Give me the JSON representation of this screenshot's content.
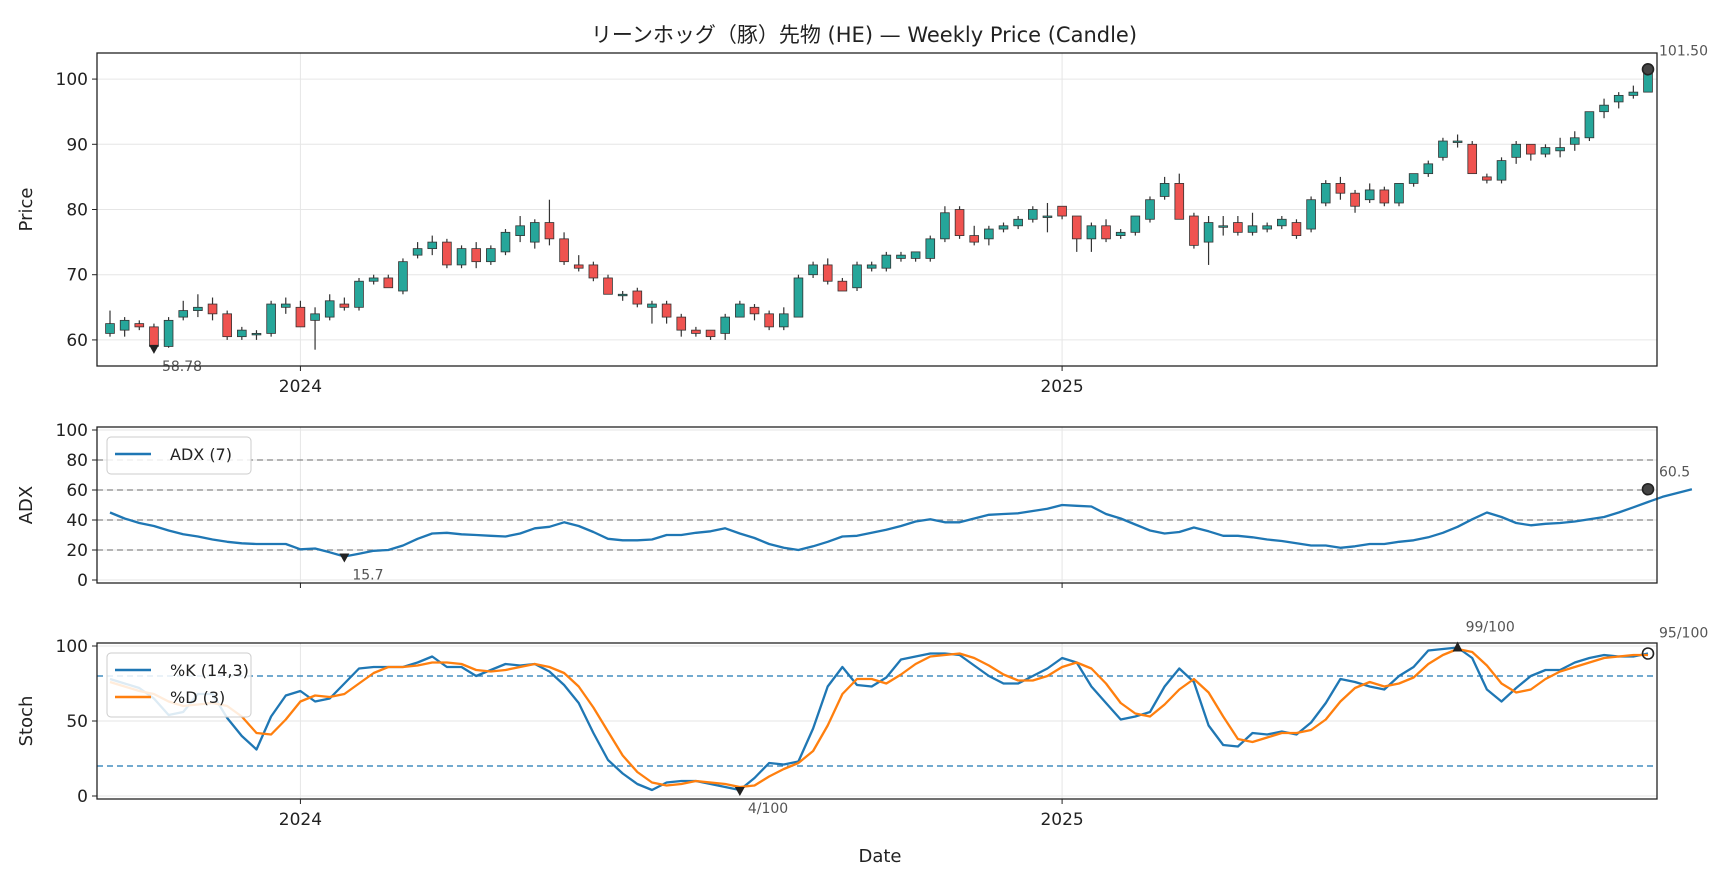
{
  "title": "リーンホッグ（豚）先物 (HE) — Weekly Price (Candle)",
  "colors": {
    "up": "#26a69a",
    "down": "#ef5350",
    "adx": "#1f77b4",
    "k": "#1f77b4",
    "d": "#ff7f0e",
    "stoch_ref": "#1f77b4",
    "adx_ref": "#888888"
  },
  "xaxis": {
    "label": "Date",
    "ticks": [
      {
        "label": "2024",
        "week": 13
      },
      {
        "label": "2025",
        "week": 65
      }
    ]
  },
  "chart_data": [
    {
      "type": "candlestick",
      "panel": "price",
      "ylabel": "Price",
      "ylim": [
        56,
        104
      ],
      "yticks": [
        60,
        70,
        80,
        90,
        100
      ],
      "grid": true,
      "ohlc": [
        [
          61,
          64.5,
          60.5,
          62.5
        ],
        [
          61.5,
          63.5,
          60.5,
          63
        ],
        [
          62.5,
          63,
          61.5,
          62
        ],
        [
          62,
          62.5,
          58.78,
          59
        ],
        [
          59,
          63.5,
          58.8,
          63
        ],
        [
          63.5,
          66,
          63,
          64.5
        ],
        [
          64.5,
          67,
          63.5,
          65
        ],
        [
          65.5,
          66.5,
          63,
          64
        ],
        [
          64,
          64.5,
          60,
          60.5
        ],
        [
          60.5,
          62,
          60,
          61.5
        ],
        [
          61,
          61.5,
          60,
          61
        ],
        [
          61,
          66,
          60.5,
          65.5
        ],
        [
          65,
          66.5,
          64,
          65.5
        ],
        [
          65,
          66,
          62,
          62
        ],
        [
          63,
          65,
          58.5,
          64
        ],
        [
          63.5,
          67,
          63,
          66
        ],
        [
          65.5,
          66.5,
          64.5,
          65
        ],
        [
          65,
          69.5,
          64.5,
          69
        ],
        [
          69,
          70,
          68.5,
          69.5
        ],
        [
          69.5,
          70,
          68,
          68
        ],
        [
          67.5,
          72.5,
          67,
          72
        ],
        [
          73,
          75,
          72.5,
          74
        ],
        [
          74,
          76,
          73,
          75
        ],
        [
          75,
          75.5,
          71,
          71.5
        ],
        [
          71.5,
          74.5,
          71,
          74
        ],
        [
          74,
          75,
          71,
          72
        ],
        [
          72,
          74.5,
          71.5,
          74
        ],
        [
          73.5,
          77,
          73,
          76.5
        ],
        [
          76,
          79,
          75,
          77.5
        ],
        [
          75,
          78.5,
          74,
          78
        ],
        [
          78,
          81.5,
          74.5,
          75.5
        ],
        [
          75.5,
          76.5,
          71.5,
          72
        ],
        [
          71.5,
          73,
          70.5,
          71
        ],
        [
          71.5,
          72,
          69,
          69.5
        ],
        [
          69.5,
          70,
          67,
          67
        ],
        [
          67,
          67.5,
          66,
          67
        ],
        [
          67.5,
          68,
          65,
          65.5
        ],
        [
          65,
          66,
          62.5,
          65.5
        ],
        [
          65.5,
          66,
          62.5,
          63.5
        ],
        [
          63.5,
          64,
          60.5,
          61.5
        ],
        [
          61.5,
          62,
          60.5,
          61
        ],
        [
          61.5,
          61.5,
          60,
          60.5
        ],
        [
          61,
          64,
          60,
          63.5
        ],
        [
          63.5,
          66,
          63.5,
          65.5
        ],
        [
          65,
          65.5,
          63,
          64
        ],
        [
          64,
          64.5,
          61.5,
          62
        ],
        [
          62,
          65,
          61.5,
          64
        ],
        [
          63.5,
          70,
          63.5,
          69.5
        ],
        [
          70,
          72,
          69.5,
          71.5
        ],
        [
          71.5,
          72.5,
          68.5,
          69
        ],
        [
          69,
          69.5,
          67.5,
          67.5
        ],
        [
          68,
          72,
          67.5,
          71.5
        ],
        [
          71,
          72,
          70.5,
          71.5
        ],
        [
          71,
          73.5,
          70.5,
          73
        ],
        [
          72.5,
          73.5,
          72,
          73
        ],
        [
          72.5,
          73.5,
          72,
          73.5
        ],
        [
          72.5,
          76,
          72,
          75.5
        ],
        [
          75.5,
          80.5,
          75,
          79.5
        ],
        [
          80,
          80.5,
          75.5,
          76
        ],
        [
          76,
          77.5,
          74.5,
          75
        ],
        [
          75.5,
          77.5,
          74.5,
          77
        ],
        [
          77,
          78,
          76.5,
          77.5
        ],
        [
          77.5,
          79,
          77,
          78.5
        ],
        [
          78.5,
          80.5,
          78,
          80
        ],
        [
          79,
          81,
          76.5,
          79
        ],
        [
          80.5,
          80.5,
          78.5,
          79
        ],
        [
          79,
          79,
          73.5,
          75.5
        ],
        [
          75.5,
          78,
          73.5,
          77.5
        ],
        [
          77.5,
          78.5,
          75,
          75.5
        ],
        [
          76,
          77,
          75.5,
          76.5
        ],
        [
          76.5,
          79,
          76,
          79
        ],
        [
          78.5,
          82,
          78,
          81.5
        ],
        [
          82,
          85,
          81.5,
          84
        ],
        [
          84,
          85.5,
          78.5,
          78.5
        ],
        [
          79,
          79.5,
          74,
          74.5
        ],
        [
          75,
          79,
          71.5,
          78
        ],
        [
          77.5,
          79,
          76,
          77.5
        ],
        [
          78,
          79,
          76,
          76.5
        ],
        [
          76.5,
          79.5,
          76,
          77.5
        ],
        [
          77,
          78,
          76.5,
          77.5
        ],
        [
          77.5,
          79,
          77,
          78.5
        ],
        [
          78,
          78.5,
          75.5,
          76
        ],
        [
          77,
          82,
          76.5,
          81.5
        ],
        [
          81,
          84.5,
          80.5,
          84
        ],
        [
          84,
          85,
          81.5,
          82.5
        ],
        [
          82.5,
          83,
          79.5,
          80.5
        ],
        [
          81.5,
          84,
          81,
          83
        ],
        [
          83,
          83.5,
          80.5,
          81
        ],
        [
          81,
          84,
          80.5,
          84
        ],
        [
          84,
          85.5,
          83.5,
          85.5
        ],
        [
          85.5,
          87.5,
          85,
          87
        ],
        [
          88,
          91,
          87.5,
          90.5
        ],
        [
          90.5,
          91.5,
          89.5,
          90.5
        ],
        [
          90,
          90.5,
          85.5,
          85.5
        ],
        [
          85,
          85.5,
          84,
          84.5
        ],
        [
          84.5,
          88,
          84,
          87.5
        ],
        [
          88,
          90.5,
          87,
          90
        ],
        [
          90,
          90,
          87.5,
          88.5
        ],
        [
          88.5,
          90,
          88,
          89.5
        ],
        [
          89,
          91,
          88,
          89.5
        ],
        [
          90,
          92,
          89,
          91
        ],
        [
          91,
          95,
          90.5,
          95
        ],
        [
          95,
          97,
          94,
          96
        ],
        [
          96.5,
          98,
          95.5,
          97.5
        ],
        [
          97.5,
          99,
          97,
          98
        ],
        [
          98,
          101.5,
          98,
          101.5
        ]
      ],
      "annotations": [
        {
          "label": "58.78",
          "index": 3,
          "value": 58.78
        },
        {
          "label": "101.50",
          "index": 105,
          "value": 101.5
        }
      ]
    },
    {
      "type": "line",
      "panel": "adx",
      "ylabel": "ADX",
      "ylim": [
        -2,
        102
      ],
      "yticks": [
        0,
        20,
        40,
        60,
        80,
        100
      ],
      "reference_lines": [
        20,
        40,
        60,
        80
      ],
      "legend_position": "upper-left",
      "series": [
        {
          "name": "ADX (7)",
          "values": [
            45,
            41,
            38,
            36,
            33,
            30.5,
            29,
            27,
            25.5,
            24.5,
            24,
            24,
            24,
            20.5,
            21,
            18.5,
            15.7,
            17.5,
            19.5,
            20,
            23,
            27.5,
            31,
            31.5,
            30.5,
            30,
            29.5,
            29,
            31,
            34.5,
            35.5,
            38.5,
            36,
            32,
            27.5,
            26.5,
            26.5,
            27,
            30,
            30,
            31.5,
            32.5,
            34.5,
            31,
            28,
            24,
            21.5,
            20,
            22.5,
            25.5,
            29,
            29.5,
            31.5,
            33.5,
            36,
            39,
            40.5,
            38.5,
            38.5,
            41,
            43.5,
            44,
            44.5,
            46,
            47.5,
            50,
            49.5,
            49,
            44,
            41,
            37,
            33,
            31,
            32,
            35,
            32.5,
            29.5,
            29.5,
            28.5,
            27,
            26,
            24.5,
            23,
            23,
            21.5,
            22.5,
            24,
            24,
            25.5,
            26.5,
            28.5,
            31.5,
            35.5,
            40.5,
            45,
            42,
            38,
            36.5,
            37.5,
            38,
            39,
            40.5,
            42,
            45,
            48.5,
            52,
            55.5,
            58,
            60.5
          ]
        }
      ],
      "annotations": [
        {
          "label": "15.7",
          "index": 16,
          "value": 15.7
        },
        {
          "label": "60.5",
          "index": 105,
          "value": 60.5
        }
      ]
    },
    {
      "type": "line",
      "panel": "stoch",
      "ylabel": "Stoch",
      "ylim": [
        -2,
        102
      ],
      "yticks": [
        0,
        50,
        100
      ],
      "reference_lines": [
        20,
        80
      ],
      "legend_position": "upper-left",
      "series": [
        {
          "name": "%K (14,3)",
          "values": [
            78,
            75,
            72,
            65,
            54,
            56,
            68,
            68,
            52,
            40,
            31,
            53,
            67,
            70,
            63,
            65,
            75,
            85,
            86,
            86,
            86,
            89,
            93,
            86,
            86,
            80,
            84,
            88,
            87,
            88,
            83,
            74,
            62,
            42,
            24,
            15,
            8,
            4,
            9,
            10,
            10,
            8,
            6,
            4,
            12,
            22,
            21,
            23,
            45,
            73,
            86,
            74,
            73,
            79,
            91,
            93,
            95,
            95,
            94,
            87,
            80,
            75,
            75,
            80,
            85,
            92,
            89,
            73,
            62,
            51,
            53,
            56,
            73,
            85,
            76,
            47,
            34,
            33,
            42,
            41,
            43,
            41,
            49,
            62,
            78,
            76,
            73,
            71,
            80,
            86,
            97,
            98,
            99,
            92,
            71,
            63,
            72,
            80,
            84,
            84,
            89,
            92,
            94,
            93,
            93,
            95
          ]
        },
        {
          "name": "%D (3)",
          "values": [
            76,
            73,
            70,
            68,
            63,
            60,
            61,
            62,
            60,
            53,
            42,
            41,
            51,
            63,
            67,
            66,
            68,
            75,
            82,
            86,
            86,
            87,
            89,
            89,
            88,
            84,
            83,
            84,
            86,
            88,
            86,
            82,
            73,
            59,
            43,
            27,
            16,
            9,
            7,
            8,
            10,
            9,
            8,
            6,
            7,
            13,
            18,
            22,
            30,
            47,
            68,
            78,
            78,
            75,
            81,
            88,
            93,
            94,
            95,
            92,
            87,
            81,
            77,
            77,
            80,
            86,
            89,
            85,
            75,
            62,
            55,
            53,
            61,
            71,
            78,
            69,
            53,
            38,
            36,
            39,
            42,
            42,
            44,
            51,
            63,
            72,
            76,
            73,
            75,
            79,
            88,
            94,
            98,
            96,
            87,
            75,
            69,
            71,
            78,
            83,
            86,
            89,
            92,
            93,
            94,
            94
          ]
        }
      ],
      "annotations": [
        {
          "label": "99/100",
          "index": 92,
          "value": 99
        },
        {
          "label": "4/100",
          "index": 43,
          "value": 4
        },
        {
          "label": "95/100",
          "index": 105,
          "value": 95
        }
      ]
    }
  ]
}
